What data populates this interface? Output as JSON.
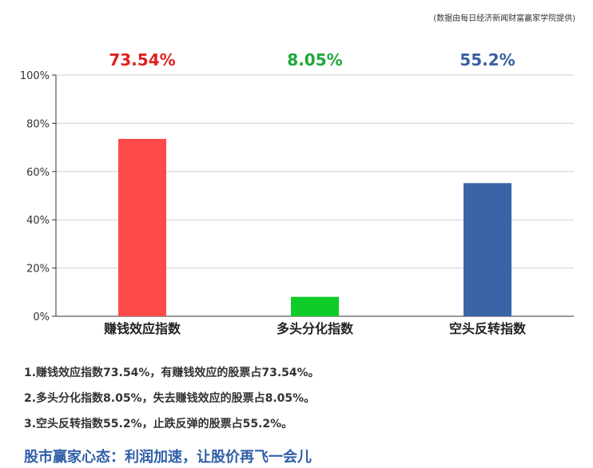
{
  "source_note": "(数据由每日经济新闻财富赢家学院提供)",
  "chart_data": {
    "type": "bar",
    "categories": [
      "赚钱效应指数",
      "多头分化指数",
      "空头反转指数"
    ],
    "values": [
      73.54,
      8.05,
      55.2
    ],
    "value_labels": [
      "73.54%",
      "8.05%",
      "55.2%"
    ],
    "colors": [
      "#ff4a4a",
      "#0fcc2a",
      "#3a63a8"
    ],
    "label_colors": [
      "#e02020",
      "#1fa83a",
      "#3a5fa0"
    ],
    "ylim": [
      0,
      100
    ],
    "yticks": [
      0,
      20,
      40,
      60,
      80,
      100
    ],
    "ytick_labels": [
      "0%",
      "20%",
      "40%",
      "60%",
      "80%",
      "100%"
    ],
    "grid": true
  },
  "notes": [
    "1.赚钱效应指数73.54%，有赚钱效应的股票占73.54%。",
    "2.多头分化指数8.05%，失去赚钱效应的股票占8.05%。",
    "3.空头反转指数55.2%，止跌反弹的股票占55.2%。"
  ],
  "mood": "股市赢家心态：利润加速，让股价再飞一会儿"
}
